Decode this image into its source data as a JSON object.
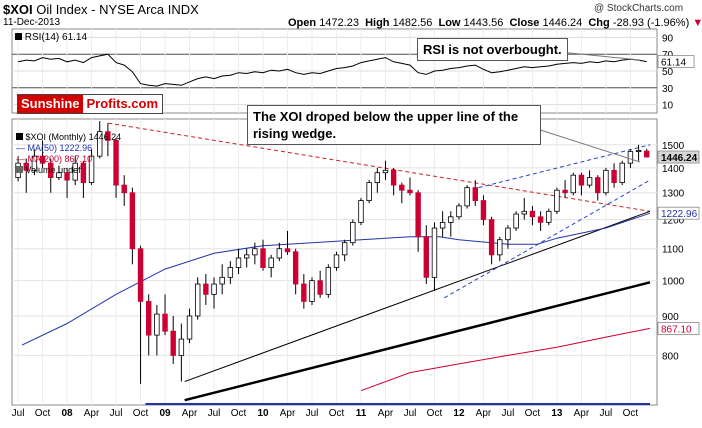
{
  "header": {
    "symbol": "$XOI",
    "name": "Oil Index - NYSE Arca INDX",
    "date": "11-Dec-2013",
    "open_label": "Open",
    "open": "1472.23",
    "high_label": "High",
    "high": "1482.56",
    "low_label": "Low",
    "low": "1443.56",
    "close_label": "Close",
    "close": "1446.24",
    "chg_label": "Chg",
    "chg": "-28.93 (-1.96%)",
    "watermark": "@ StockCharts.com"
  },
  "colors": {
    "up": "#000000",
    "down": "#cc0033",
    "ma50": "#2233aa",
    "ma200": "#cc0033",
    "rsi": "#000000",
    "price_tag": "#d7d7d7",
    "chg_down": "#cc0033"
  },
  "branding": {
    "part1": "Sunshine",
    "part2": "Profits.com"
  },
  "annotations": {
    "rsi_note": "RSI is not overbought.",
    "price_note": "The XOI droped below the upper line of the rising wedge."
  },
  "chart_data": [
    {
      "type": "line",
      "name": "RSI(14)",
      "legend": {
        "label": "RSI(14)",
        "value": "61.14"
      },
      "y_ticks": [
        10,
        30,
        50,
        70,
        90
      ],
      "ylim": [
        0,
        100
      ],
      "reference_lines": [
        70,
        30
      ],
      "x": [
        "2007-07",
        "2007-08",
        "2007-09",
        "2007-10",
        "2007-11",
        "2007-12",
        "2008-01",
        "2008-02",
        "2008-03",
        "2008-04",
        "2008-05",
        "2008-06",
        "2008-07",
        "2008-08",
        "2008-09",
        "2008-10",
        "2008-11",
        "2008-12",
        "2009-01",
        "2009-02",
        "2009-03",
        "2009-04",
        "2009-05",
        "2009-06",
        "2009-07",
        "2009-08",
        "2009-09",
        "2009-10",
        "2009-11",
        "2009-12",
        "2010-01",
        "2010-02",
        "2010-03",
        "2010-04",
        "2010-05",
        "2010-06",
        "2010-07",
        "2010-08",
        "2010-09",
        "2010-10",
        "2010-11",
        "2010-12",
        "2011-01",
        "2011-02",
        "2011-03",
        "2011-04",
        "2011-05",
        "2011-06",
        "2011-07",
        "2011-08",
        "2011-09",
        "2011-10",
        "2011-11",
        "2011-12",
        "2012-01",
        "2012-02",
        "2012-03",
        "2012-04",
        "2012-05",
        "2012-06",
        "2012-07",
        "2012-08",
        "2012-09",
        "2012-10",
        "2012-11",
        "2012-12",
        "2013-01",
        "2013-02",
        "2013-03",
        "2013-04",
        "2013-05",
        "2013-06",
        "2013-07",
        "2013-08",
        "2013-09",
        "2013-10",
        "2013-11",
        "2013-12"
      ],
      "values": [
        61,
        63,
        62,
        66,
        64,
        65,
        61,
        63,
        60,
        66,
        68,
        70,
        60,
        57,
        49,
        35,
        33,
        32,
        35,
        34,
        33,
        37,
        41,
        43,
        41,
        44,
        45,
        48,
        47,
        49,
        48,
        51,
        50,
        52,
        48,
        46,
        48,
        47,
        50,
        53,
        54,
        56,
        60,
        62,
        64,
        66,
        61,
        59,
        57,
        48,
        46,
        50,
        51,
        53,
        54,
        56,
        57,
        52,
        48,
        49,
        51,
        53,
        55,
        54,
        55,
        56,
        58,
        59,
        60,
        59,
        61,
        60,
        62,
        61,
        63,
        64,
        63,
        61.14
      ]
    },
    {
      "type": "candlestick",
      "name": "$XOI (Monthly)",
      "legend": [
        {
          "label": "$XOI (Monthly)",
          "value": "1446.24"
        },
        {
          "label": "MA(50)",
          "value": "1222.96"
        },
        {
          "label": "MA(200)",
          "value": "867.10"
        },
        {
          "label": "Volume",
          "value": "undef"
        }
      ],
      "scale": "log",
      "ylim": [
        690,
        1620
      ],
      "y_ticks": [
        800,
        900,
        1000,
        1100,
        1200,
        1300,
        1400,
        1500
      ],
      "last_close": "1446.24",
      "ma50_last": "1222.96",
      "ma200_last": "867.10",
      "x_ticks": [
        "Jul",
        "Oct",
        "08",
        "Apr",
        "Jul",
        "Oct",
        "09",
        "Apr",
        "Jul",
        "Oct",
        "10",
        "Apr",
        "Jul",
        "Oct",
        "11",
        "Apr",
        "Jul",
        "Oct",
        "12",
        "Apr",
        "Jul",
        "Oct",
        "13",
        "Apr",
        "Jul",
        "Oct"
      ],
      "candles": [
        {
          "date": "2007-07",
          "o": 1360,
          "h": 1450,
          "l": 1345,
          "c": 1420
        },
        {
          "date": "2007-08",
          "o": 1420,
          "h": 1440,
          "l": 1300,
          "c": 1390
        },
        {
          "date": "2007-09",
          "o": 1390,
          "h": 1480,
          "l": 1370,
          "c": 1450
        },
        {
          "date": "2007-10",
          "o": 1450,
          "h": 1520,
          "l": 1400,
          "c": 1420
        },
        {
          "date": "2007-11",
          "o": 1420,
          "h": 1440,
          "l": 1300,
          "c": 1360
        },
        {
          "date": "2007-12",
          "o": 1360,
          "h": 1410,
          "l": 1350,
          "c": 1380
        },
        {
          "date": "2008-01",
          "o": 1380,
          "h": 1400,
          "l": 1280,
          "c": 1350
        },
        {
          "date": "2008-02",
          "o": 1350,
          "h": 1450,
          "l": 1330,
          "c": 1420
        },
        {
          "date": "2008-03",
          "o": 1420,
          "h": 1430,
          "l": 1280,
          "c": 1340
        },
        {
          "date": "2008-04",
          "o": 1340,
          "h": 1480,
          "l": 1330,
          "c": 1450
        },
        {
          "date": "2008-05",
          "o": 1450,
          "h": 1610,
          "l": 1440,
          "c": 1560
        },
        {
          "date": "2008-06",
          "o": 1560,
          "h": 1600,
          "l": 1450,
          "c": 1520
        },
        {
          "date": "2008-07",
          "o": 1520,
          "h": 1530,
          "l": 1280,
          "c": 1330
        },
        {
          "date": "2008-08",
          "o": 1330,
          "h": 1370,
          "l": 1250,
          "c": 1300
        },
        {
          "date": "2008-09",
          "o": 1300,
          "h": 1320,
          "l": 1050,
          "c": 1100
        },
        {
          "date": "2008-10",
          "o": 1100,
          "h": 1110,
          "l": 735,
          "c": 940
        },
        {
          "date": "2008-11",
          "o": 940,
          "h": 960,
          "l": 800,
          "c": 850
        },
        {
          "date": "2008-12",
          "o": 850,
          "h": 930,
          "l": 800,
          "c": 905
        },
        {
          "date": "2009-01",
          "o": 905,
          "h": 960,
          "l": 850,
          "c": 860
        },
        {
          "date": "2009-02",
          "o": 860,
          "h": 900,
          "l": 780,
          "c": 800
        },
        {
          "date": "2009-03",
          "o": 800,
          "h": 880,
          "l": 740,
          "c": 840
        },
        {
          "date": "2009-04",
          "o": 840,
          "h": 920,
          "l": 830,
          "c": 900
        },
        {
          "date": "2009-05",
          "o": 900,
          "h": 1010,
          "l": 890,
          "c": 990
        },
        {
          "date": "2009-06",
          "o": 990,
          "h": 1020,
          "l": 930,
          "c": 960
        },
        {
          "date": "2009-07",
          "o": 960,
          "h": 1010,
          "l": 920,
          "c": 990
        },
        {
          "date": "2009-08",
          "o": 990,
          "h": 1050,
          "l": 960,
          "c": 1010
        },
        {
          "date": "2009-09",
          "o": 1010,
          "h": 1060,
          "l": 990,
          "c": 1040
        },
        {
          "date": "2009-10",
          "o": 1040,
          "h": 1100,
          "l": 1020,
          "c": 1070
        },
        {
          "date": "2009-11",
          "o": 1070,
          "h": 1100,
          "l": 1040,
          "c": 1080
        },
        {
          "date": "2009-12",
          "o": 1080,
          "h": 1120,
          "l": 1050,
          "c": 1100
        },
        {
          "date": "2010-01",
          "o": 1100,
          "h": 1130,
          "l": 1030,
          "c": 1040
        },
        {
          "date": "2010-02",
          "o": 1040,
          "h": 1080,
          "l": 1010,
          "c": 1070
        },
        {
          "date": "2010-03",
          "o": 1070,
          "h": 1120,
          "l": 1060,
          "c": 1100
        },
        {
          "date": "2010-04",
          "o": 1100,
          "h": 1160,
          "l": 1080,
          "c": 1090
        },
        {
          "date": "2010-05",
          "o": 1090,
          "h": 1100,
          "l": 960,
          "c": 990
        },
        {
          "date": "2010-06",
          "o": 990,
          "h": 1020,
          "l": 920,
          "c": 940
        },
        {
          "date": "2010-07",
          "o": 940,
          "h": 1010,
          "l": 930,
          "c": 1000
        },
        {
          "date": "2010-08",
          "o": 1000,
          "h": 1030,
          "l": 950,
          "c": 960
        },
        {
          "date": "2010-09",
          "o": 960,
          "h": 1050,
          "l": 950,
          "c": 1040
        },
        {
          "date": "2010-10",
          "o": 1040,
          "h": 1090,
          "l": 1030,
          "c": 1080
        },
        {
          "date": "2010-11",
          "o": 1080,
          "h": 1130,
          "l": 1060,
          "c": 1120
        },
        {
          "date": "2010-12",
          "o": 1120,
          "h": 1200,
          "l": 1110,
          "c": 1190
        },
        {
          "date": "2011-01",
          "o": 1190,
          "h": 1280,
          "l": 1180,
          "c": 1270
        },
        {
          "date": "2011-02",
          "o": 1270,
          "h": 1350,
          "l": 1260,
          "c": 1340
        },
        {
          "date": "2011-03",
          "o": 1340,
          "h": 1400,
          "l": 1300,
          "c": 1380
        },
        {
          "date": "2011-04",
          "o": 1380,
          "h": 1430,
          "l": 1350,
          "c": 1390
        },
        {
          "date": "2011-05",
          "o": 1390,
          "h": 1400,
          "l": 1290,
          "c": 1330
        },
        {
          "date": "2011-06",
          "o": 1330,
          "h": 1340,
          "l": 1260,
          "c": 1310
        },
        {
          "date": "2011-07",
          "o": 1310,
          "h": 1360,
          "l": 1290,
          "c": 1300
        },
        {
          "date": "2011-08",
          "o": 1300,
          "h": 1310,
          "l": 1090,
          "c": 1140
        },
        {
          "date": "2011-09",
          "o": 1140,
          "h": 1180,
          "l": 990,
          "c": 1010
        },
        {
          "date": "2011-10",
          "o": 1010,
          "h": 1190,
          "l": 970,
          "c": 1170
        },
        {
          "date": "2011-11",
          "o": 1170,
          "h": 1230,
          "l": 1140,
          "c": 1190
        },
        {
          "date": "2011-12",
          "o": 1190,
          "h": 1230,
          "l": 1140,
          "c": 1210
        },
        {
          "date": "2012-01",
          "o": 1210,
          "h": 1260,
          "l": 1200,
          "c": 1250
        },
        {
          "date": "2012-02",
          "o": 1250,
          "h": 1330,
          "l": 1240,
          "c": 1320
        },
        {
          "date": "2012-03",
          "o": 1320,
          "h": 1350,
          "l": 1250,
          "c": 1270
        },
        {
          "date": "2012-04",
          "o": 1270,
          "h": 1290,
          "l": 1180,
          "c": 1200
        },
        {
          "date": "2012-05",
          "o": 1200,
          "h": 1210,
          "l": 1050,
          "c": 1080
        },
        {
          "date": "2012-06",
          "o": 1080,
          "h": 1140,
          "l": 1060,
          "c": 1130
        },
        {
          "date": "2012-07",
          "o": 1130,
          "h": 1180,
          "l": 1100,
          "c": 1170
        },
        {
          "date": "2012-08",
          "o": 1170,
          "h": 1230,
          "l": 1160,
          "c": 1220
        },
        {
          "date": "2012-09",
          "o": 1220,
          "h": 1280,
          "l": 1200,
          "c": 1230
        },
        {
          "date": "2012-10",
          "o": 1230,
          "h": 1250,
          "l": 1180,
          "c": 1210
        },
        {
          "date": "2012-11",
          "o": 1210,
          "h": 1230,
          "l": 1160,
          "c": 1190
        },
        {
          "date": "2012-12",
          "o": 1190,
          "h": 1240,
          "l": 1180,
          "c": 1230
        },
        {
          "date": "2013-01",
          "o": 1230,
          "h": 1320,
          "l": 1220,
          "c": 1310
        },
        {
          "date": "2013-02",
          "o": 1310,
          "h": 1350,
          "l": 1280,
          "c": 1300
        },
        {
          "date": "2013-03",
          "o": 1300,
          "h": 1380,
          "l": 1290,
          "c": 1370
        },
        {
          "date": "2013-04",
          "o": 1370,
          "h": 1380,
          "l": 1290,
          "c": 1330
        },
        {
          "date": "2013-05",
          "o": 1330,
          "h": 1390,
          "l": 1320,
          "c": 1360
        },
        {
          "date": "2013-06",
          "o": 1360,
          "h": 1370,
          "l": 1270,
          "c": 1300
        },
        {
          "date": "2013-07",
          "o": 1300,
          "h": 1400,
          "l": 1290,
          "c": 1390
        },
        {
          "date": "2013-08",
          "o": 1390,
          "h": 1420,
          "l": 1320,
          "c": 1340
        },
        {
          "date": "2013-09",
          "o": 1340,
          "h": 1430,
          "l": 1330,
          "c": 1420
        },
        {
          "date": "2013-10",
          "o": 1420,
          "h": 1480,
          "l": 1400,
          "c": 1470
        },
        {
          "date": "2013-11",
          "o": 1470,
          "h": 1500,
          "l": 1430,
          "c": 1475
        },
        {
          "date": "2013-12",
          "o": 1472.23,
          "h": 1482.56,
          "l": 1443.56,
          "c": 1446.24
        }
      ],
      "ma50": [
        [
          2007.54,
          825
        ],
        [
          2008.0,
          880
        ],
        [
          2008.5,
          960
        ],
        [
          2009.0,
          1035
        ],
        [
          2009.5,
          1085
        ],
        [
          2010.0,
          1110
        ],
        [
          2010.5,
          1120
        ],
        [
          2011.0,
          1130
        ],
        [
          2011.5,
          1140
        ],
        [
          2011.8,
          1140
        ],
        [
          2012.0,
          1130
        ],
        [
          2012.5,
          1115
        ],
        [
          2012.8,
          1115
        ],
        [
          2013.0,
          1135
        ],
        [
          2013.5,
          1170
        ],
        [
          2013.95,
          1222.96
        ]
      ],
      "ma200": [
        [
          2011.0,
          720
        ],
        [
          2011.5,
          760
        ],
        [
          2012.0,
          780
        ],
        [
          2012.5,
          800
        ],
        [
          2013.0,
          820
        ],
        [
          2013.5,
          845
        ],
        [
          2013.95,
          867.1
        ]
      ],
      "trendlines": [
        {
          "style": "dashed",
          "color": "#cc2222",
          "points": [
            [
              2008.42,
              1600
            ],
            [
              2013.95,
              1230
            ]
          ]
        },
        {
          "style": "solid",
          "color": "#000000",
          "width": 1,
          "points": [
            [
              2009.2,
              740
            ],
            [
              2013.95,
              1230
            ]
          ]
        },
        {
          "style": "solid",
          "color": "#000000",
          "width": 2.5,
          "points": [
            [
              2009.2,
              700
            ],
            [
              2013.95,
              995
            ]
          ]
        },
        {
          "style": "dashed",
          "color": "#2244cc",
          "points": [
            [
              2012.2,
              1320
            ],
            [
              2013.95,
              1500
            ]
          ]
        },
        {
          "style": "dashed",
          "color": "#2244cc",
          "points": [
            [
              2011.85,
              950
            ],
            [
              2013.95,
              1350
            ]
          ]
        },
        {
          "style": "solid",
          "color": "#2233aa",
          "width": 2,
          "points": [
            [
              2008.8,
              692
            ],
            [
              2013.95,
              692
            ]
          ]
        }
      ]
    }
  ]
}
